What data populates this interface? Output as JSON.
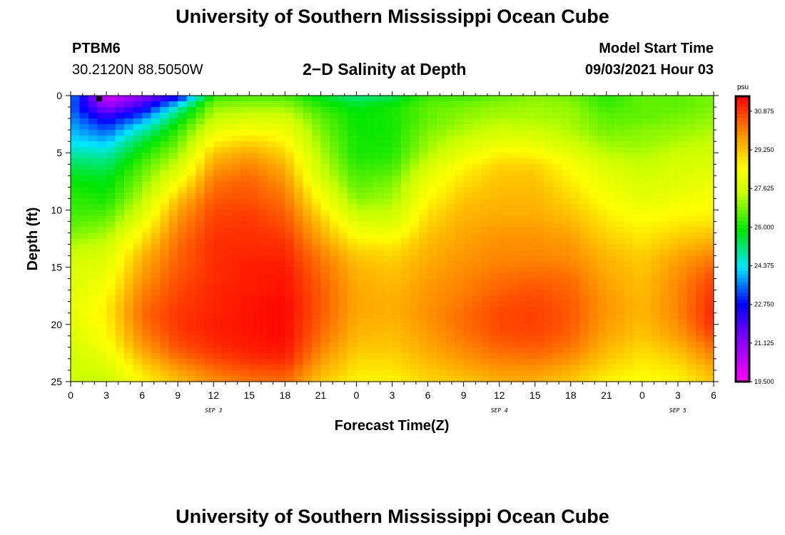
{
  "page": {
    "title_top": "University of Southern Mississippi Ocean Cube",
    "title_bottom": "University of Southern Mississippi Ocean Cube",
    "station_id": "PTBM6",
    "coordinates": "30.2120N  88.5050W",
    "subtitle": "2−D Salinity at Depth",
    "model_start_label": "Model Start Time",
    "model_start_value": "09/03/2021 Hour 03"
  },
  "chart_data": {
    "type": "heatmap",
    "title": "2-D Salinity at Depth",
    "xlabel": "Forecast Time(Z)",
    "ylabel": "Depth (ft)",
    "x_range_hours": [
      0,
      54
    ],
    "x_ticks": [
      {
        "hour": 0,
        "label": "0"
      },
      {
        "hour": 3,
        "label": "3"
      },
      {
        "hour": 6,
        "label": "6"
      },
      {
        "hour": 9,
        "label": "9"
      },
      {
        "hour": 12,
        "label": "12"
      },
      {
        "hour": 15,
        "label": "15"
      },
      {
        "hour": 18,
        "label": "18"
      },
      {
        "hour": 21,
        "label": "21"
      },
      {
        "hour": 24,
        "label": "0"
      },
      {
        "hour": 27,
        "label": "3"
      },
      {
        "hour": 30,
        "label": "6"
      },
      {
        "hour": 33,
        "label": "9"
      },
      {
        "hour": 36,
        "label": "12"
      },
      {
        "hour": 39,
        "label": "15"
      },
      {
        "hour": 42,
        "label": "18"
      },
      {
        "hour": 45,
        "label": "21"
      },
      {
        "hour": 48,
        "label": "0"
      },
      {
        "hour": 51,
        "label": "3"
      },
      {
        "hour": 54,
        "label": "6"
      }
    ],
    "day_labels": [
      {
        "hour": 12,
        "label": "SEP 3"
      },
      {
        "hour": 36,
        "label": "SEP 4"
      },
      {
        "hour": 51,
        "label": "SEP 5"
      }
    ],
    "y_range_ft": [
      0,
      25
    ],
    "y_ticks": [
      0,
      5,
      10,
      15,
      20,
      25
    ],
    "colorbar": {
      "units": "psu",
      "min": 19.5,
      "max": 31.5,
      "tick_values": [
        19.5,
        21.125,
        22.75,
        24.375,
        26.0,
        27.625,
        29.25,
        30.875
      ],
      "tick_labels": [
        "19.500",
        "21.125",
        "22.750",
        "24.375",
        "26.000",
        "27.625",
        "29.250",
        "30.875"
      ]
    },
    "salinity_field": {
      "description": "Approximate gridded salinity (psu) sampled from the figure; rows are depths, columns are forecast hours",
      "depths_ft": [
        0,
        1,
        2,
        3,
        4,
        5,
        6,
        7,
        8,
        9,
        10,
        11,
        12,
        13,
        14,
        15,
        16,
        17,
        18,
        19,
        20,
        21,
        22,
        23,
        24,
        25
      ],
      "hours": [
        0,
        3,
        6,
        9,
        12,
        15,
        18,
        21,
        24,
        27,
        30,
        33,
        36,
        39,
        42,
        45,
        48,
        51,
        54
      ],
      "values": [
        [
          23.8,
          20.0,
          21.0,
          22.3,
          26.2,
          26.4,
          26.4,
          25.6,
          25.0,
          25.3,
          26.3,
          26.3,
          26.6,
          26.9,
          26.7,
          26.1,
          26.6,
          26.6,
          26.8
        ],
        [
          23.5,
          21.0,
          22.3,
          24.6,
          27.0,
          27.1,
          27.1,
          26.2,
          25.7,
          26.0,
          26.6,
          26.8,
          27.0,
          27.1,
          27.0,
          26.3,
          26.6,
          26.6,
          26.8
        ],
        [
          23.7,
          22.5,
          23.6,
          25.6,
          27.4,
          27.7,
          27.7,
          26.6,
          25.9,
          26.0,
          26.6,
          27.0,
          27.2,
          27.2,
          27.1,
          26.6,
          26.6,
          26.8,
          27.0
        ],
        [
          24.0,
          23.3,
          24.7,
          26.2,
          28.0,
          28.4,
          28.2,
          26.8,
          25.9,
          26.0,
          26.8,
          27.2,
          27.6,
          27.5,
          27.2,
          26.7,
          26.9,
          27.0,
          27.2
        ],
        [
          24.3,
          24.0,
          25.5,
          26.6,
          28.6,
          29.0,
          28.6,
          27.0,
          26.0,
          26.0,
          27.0,
          27.6,
          28.0,
          28.0,
          27.5,
          27.0,
          27.0,
          27.2,
          27.4
        ],
        [
          24.8,
          24.7,
          26.0,
          27.0,
          29.2,
          29.6,
          29.0,
          27.2,
          26.0,
          26.1,
          27.2,
          28.0,
          28.6,
          28.5,
          28.0,
          27.3,
          27.2,
          27.5,
          27.6
        ],
        [
          25.3,
          25.2,
          26.4,
          27.5,
          29.6,
          30.0,
          29.4,
          27.4,
          26.2,
          26.3,
          27.6,
          28.5,
          29.0,
          29.0,
          28.4,
          27.7,
          27.4,
          27.7,
          27.8
        ],
        [
          25.7,
          25.6,
          26.7,
          28.0,
          30.0,
          30.3,
          29.7,
          27.6,
          26.4,
          26.6,
          28.0,
          28.8,
          29.2,
          29.2,
          28.6,
          28.0,
          27.6,
          27.8,
          28.0
        ],
        [
          26.0,
          25.8,
          27.0,
          28.6,
          30.3,
          30.5,
          30.0,
          28.0,
          26.6,
          26.9,
          28.3,
          29.0,
          29.3,
          29.3,
          28.8,
          28.2,
          27.8,
          28.0,
          28.2
        ],
        [
          26.2,
          26.0,
          27.3,
          29.2,
          30.5,
          30.6,
          30.2,
          28.4,
          26.9,
          27.1,
          28.5,
          29.2,
          29.4,
          29.4,
          29.0,
          28.4,
          28.0,
          28.2,
          28.4
        ],
        [
          26.3,
          26.3,
          27.7,
          29.6,
          30.7,
          30.8,
          30.4,
          28.8,
          27.3,
          27.4,
          28.8,
          29.4,
          29.5,
          29.5,
          29.2,
          28.6,
          28.3,
          28.4,
          28.6
        ],
        [
          26.5,
          26.7,
          28.1,
          29.9,
          30.8,
          30.9,
          30.6,
          29.2,
          27.8,
          27.7,
          29.0,
          29.5,
          29.6,
          29.6,
          29.4,
          28.8,
          28.5,
          28.7,
          28.8
        ],
        [
          26.8,
          27.1,
          28.6,
          30.1,
          30.9,
          31.0,
          30.8,
          29.5,
          28.3,
          28.2,
          29.2,
          29.6,
          29.8,
          29.8,
          29.6,
          29.0,
          28.7,
          29.0,
          29.2
        ],
        [
          27.2,
          27.5,
          29.0,
          30.3,
          31.0,
          31.0,
          31.0,
          29.8,
          28.8,
          28.7,
          29.4,
          29.7,
          29.9,
          29.9,
          29.8,
          29.2,
          28.9,
          29.3,
          29.6
        ],
        [
          27.5,
          27.8,
          29.4,
          30.4,
          31.0,
          31.1,
          31.1,
          30.1,
          29.2,
          29.0,
          29.5,
          29.8,
          30.0,
          30.0,
          29.9,
          29.4,
          29.1,
          29.6,
          30.0
        ],
        [
          27.7,
          28.0,
          29.6,
          30.5,
          31.0,
          31.2,
          31.2,
          30.3,
          29.4,
          29.2,
          29.6,
          29.9,
          30.1,
          30.2,
          30.1,
          29.5,
          29.2,
          29.8,
          30.4
        ],
        [
          27.8,
          28.2,
          29.8,
          30.6,
          31.0,
          31.2,
          31.3,
          30.4,
          29.5,
          29.3,
          29.7,
          30.0,
          30.3,
          30.4,
          30.3,
          29.6,
          29.3,
          29.9,
          30.7
        ],
        [
          27.9,
          28.4,
          30.0,
          30.7,
          31.1,
          31.2,
          31.3,
          30.5,
          29.6,
          29.4,
          29.8,
          30.1,
          30.4,
          30.6,
          30.4,
          29.7,
          29.3,
          30.0,
          30.9
        ],
        [
          28.0,
          28.6,
          30.2,
          30.8,
          31.1,
          31.3,
          31.4,
          30.5,
          29.6,
          29.5,
          29.8,
          30.2,
          30.6,
          30.7,
          30.5,
          29.8,
          29.4,
          30.0,
          31.0
        ],
        [
          28.0,
          28.7,
          30.3,
          30.9,
          31.1,
          31.3,
          31.4,
          30.5,
          29.6,
          29.5,
          29.9,
          30.3,
          30.7,
          30.8,
          30.5,
          29.8,
          29.4,
          30.0,
          31.1
        ],
        [
          27.9,
          28.6,
          30.2,
          30.9,
          31.2,
          31.3,
          31.4,
          30.4,
          29.5,
          29.4,
          29.8,
          30.3,
          30.7,
          30.8,
          30.5,
          29.7,
          29.3,
          29.9,
          31.0
        ],
        [
          27.8,
          28.5,
          30.0,
          30.8,
          31.1,
          31.3,
          31.4,
          30.3,
          29.4,
          29.3,
          29.7,
          30.2,
          30.6,
          30.7,
          30.4,
          29.6,
          29.2,
          29.7,
          30.7
        ],
        [
          27.7,
          28.3,
          29.7,
          30.6,
          31.0,
          31.2,
          31.3,
          30.1,
          29.2,
          29.2,
          29.6,
          30.0,
          30.4,
          30.5,
          30.2,
          29.4,
          29.0,
          29.4,
          30.3
        ],
        [
          27.6,
          28.0,
          29.3,
          30.2,
          30.7,
          31.0,
          31.1,
          29.8,
          29.0,
          29.0,
          29.4,
          29.8,
          30.1,
          30.2,
          29.9,
          29.2,
          28.8,
          29.1,
          29.9
        ],
        [
          27.6,
          27.7,
          28.9,
          29.7,
          30.3,
          30.6,
          30.7,
          29.5,
          28.8,
          28.8,
          29.2,
          29.5,
          29.8,
          29.8,
          29.5,
          28.9,
          28.6,
          28.8,
          29.5
        ],
        [
          27.5,
          27.5,
          28.6,
          29.3,
          29.9,
          30.2,
          30.3,
          29.2,
          28.6,
          28.6,
          29.0,
          29.2,
          29.5,
          29.5,
          29.2,
          28.6,
          28.4,
          28.6,
          29.2
        ]
      ]
    }
  }
}
